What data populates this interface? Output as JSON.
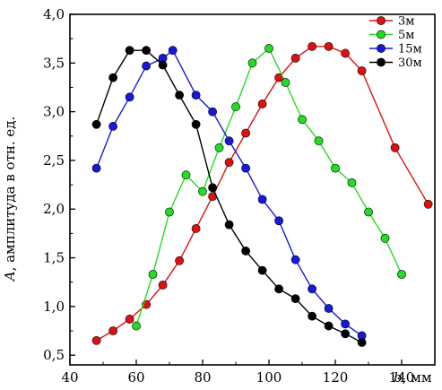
{
  "chart_data": {
    "type": "line",
    "xlabel_var": "b",
    "xlabel_unit": ", мм",
    "ylabel_var": "A",
    "ylabel_text": ", амплитуда в отн. ед.",
    "xlim": [
      40,
      150
    ],
    "ylim": [
      0.4,
      4.0
    ],
    "xticks": [
      40,
      60,
      80,
      100,
      120,
      140
    ],
    "yticks": [
      0.5,
      1.0,
      1.5,
      2.0,
      2.5,
      3.0,
      3.5,
      4.0
    ],
    "xtick_labels": [
      "40",
      "60",
      "80",
      "100",
      "120",
      "140"
    ],
    "ytick_labels": [
      "0,5",
      "1,0",
      "1,5",
      "2,0",
      "2,5",
      "3,0",
      "3,5",
      "4,0"
    ],
    "grid": false,
    "legend_position": "top-right",
    "series": [
      {
        "name": "3м",
        "color": "#e01010",
        "x": [
          48,
          53,
          58,
          63,
          68,
          73,
          78,
          83,
          88,
          93,
          98,
          103,
          108,
          113,
          118,
          123,
          128,
          138,
          148
        ],
        "y": [
          0.65,
          0.75,
          0.87,
          1.02,
          1.22,
          1.47,
          1.8,
          2.13,
          2.48,
          2.78,
          3.08,
          3.35,
          3.55,
          3.67,
          3.67,
          3.6,
          3.42,
          2.63,
          2.05
        ]
      },
      {
        "name": "5м",
        "color": "#22dd22",
        "x": [
          60,
          65,
          70,
          75,
          80,
          85,
          90,
          95,
          100,
          105,
          110,
          115,
          120,
          125,
          130,
          135,
          140
        ],
        "y": [
          0.8,
          1.33,
          1.97,
          2.35,
          2.18,
          2.63,
          3.05,
          3.5,
          3.65,
          3.3,
          2.92,
          2.7,
          2.42,
          2.27,
          1.97,
          1.7,
          1.33
        ]
      },
      {
        "name": "15м",
        "color": "#1818dd",
        "x": [
          48,
          53,
          58,
          63,
          68,
          71,
          78,
          83,
          88,
          93,
          98,
          103,
          108,
          113,
          118,
          123,
          128
        ],
        "y": [
          2.42,
          2.85,
          3.15,
          3.47,
          3.55,
          3.63,
          3.17,
          3.0,
          2.7,
          2.42,
          2.1,
          1.88,
          1.48,
          1.18,
          0.98,
          0.82,
          0.7
        ]
      },
      {
        "name": "30м",
        "color": "#000000",
        "x": [
          48,
          53,
          58,
          63,
          68,
          73,
          78,
          83,
          88,
          93,
          98,
          103,
          108,
          113,
          118,
          123,
          128
        ],
        "y": [
          2.87,
          3.35,
          3.63,
          3.63,
          3.48,
          3.17,
          2.87,
          2.22,
          1.84,
          1.57,
          1.37,
          1.18,
          1.08,
          0.9,
          0.8,
          0.72,
          0.63
        ]
      }
    ]
  }
}
